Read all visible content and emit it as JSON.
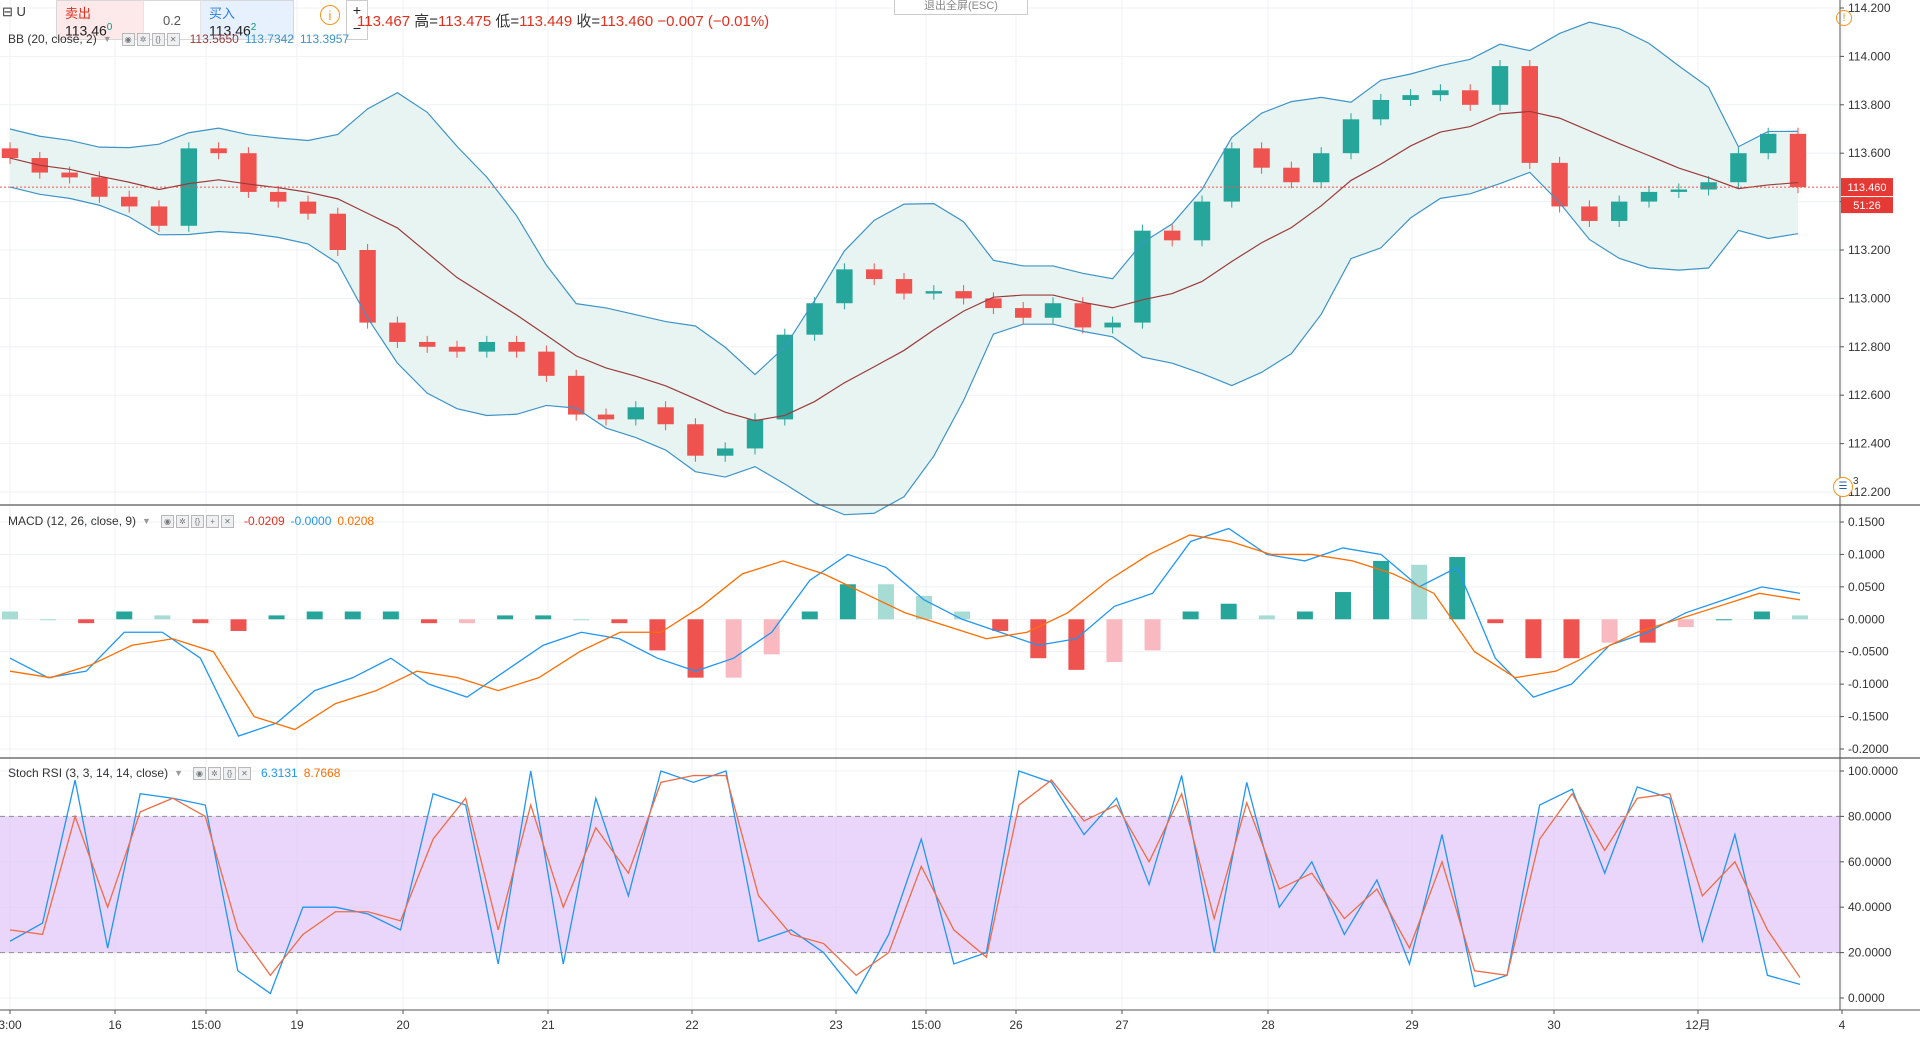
{
  "window": {
    "exit_fullscreen": "退出全屏(ESC)",
    "symbol_abbrev": "U"
  },
  "trade": {
    "sell_label": "卖出",
    "sell_price": "113.46",
    "sell_price_sup": "0",
    "spread": "0.2",
    "buy_label": "买入",
    "buy_price": "113.46",
    "buy_price_sup": "2",
    "zoom_in": "+",
    "zoom_out": "−",
    "info": "i"
  },
  "ohlc": {
    "open_value": "113.467",
    "high_label": "高=",
    "high_value": "113.475",
    "low_label": "低=",
    "low_value": "113.449",
    "close_label": "收=",
    "close_value": "113.460",
    "change": "−0.007 (−0.01%)"
  },
  "indicators": {
    "bb": {
      "label": "BB (20, close, 2)",
      "v1": "113.5650",
      "v2": "113.7342",
      "v3": "113.3957"
    },
    "macd": {
      "label": "MACD (12, 26, close, 9)",
      "hist": "-0.0209",
      "macd": "-0.0000",
      "signal": "0.0208"
    },
    "stoch": {
      "label": "Stoch RSI (3, 3, 14, 14, close)",
      "k": "6.3131",
      "d": "8.7668"
    }
  },
  "price_axis": {
    "ticks": [
      "114.200",
      "114.000",
      "113.800",
      "113.600",
      "113.400",
      "113.200",
      "113.000",
      "112.800",
      "112.600",
      "112.400",
      "112.200"
    ],
    "current_price": "113.460",
    "countdown": "51:26",
    "events_count": "3"
  },
  "macd_axis": {
    "ticks": [
      "0.1500",
      "0.1000",
      "0.0500",
      "0.0000",
      "-0.0500",
      "-0.1000",
      "-0.1500",
      "-0.2000"
    ]
  },
  "stoch_axis": {
    "ticks": [
      "100.0000",
      "80.0000",
      "60.0000",
      "40.0000",
      "20.0000",
      "0.0000"
    ]
  },
  "time_axis": {
    "ticks": [
      "3:00",
      "16",
      "15:00",
      "19",
      "20",
      "21",
      "22",
      "23",
      "15:00",
      "26",
      "27",
      "28",
      "29",
      "30",
      "12月",
      "4"
    ]
  },
  "colors": {
    "up": "#26a69a",
    "down": "#ef5350",
    "bb_band": "#3d94c8",
    "bb_mid": "#9b3b3b",
    "macd": "#2196f3",
    "signal": "#ff6d00",
    "stoch_band": "#e1c8f8"
  },
  "chart_data": [
    {
      "type": "candlestick",
      "title": "",
      "x": [
        0,
        1,
        2,
        3,
        4,
        5,
        6,
        7,
        8,
        9,
        10,
        11,
        12,
        13,
        14,
        15,
        16,
        17,
        18,
        19,
        20,
        21,
        22,
        23,
        24,
        25,
        26,
        27,
        28,
        29,
        30,
        31,
        32,
        33,
        34,
        35,
        36,
        37,
        38,
        39,
        40,
        41,
        42,
        43,
        44,
        45,
        46,
        47,
        48,
        49,
        50,
        51,
        52,
        53,
        54,
        55,
        56,
        57,
        58,
        59,
        60
      ],
      "close": [
        113.58,
        113.52,
        113.5,
        113.42,
        113.38,
        113.3,
        113.62,
        113.6,
        113.44,
        113.4,
        113.35,
        113.2,
        112.9,
        112.82,
        112.8,
        112.78,
        112.82,
        112.78,
        112.68,
        112.52,
        112.5,
        112.55,
        112.48,
        112.35,
        112.38,
        112.5,
        112.85,
        112.98,
        113.12,
        113.08,
        113.02,
        113.03,
        113.0,
        112.96,
        112.92,
        112.98,
        112.88,
        112.9,
        113.28,
        113.24,
        113.4,
        113.62,
        113.54,
        113.48,
        113.6,
        113.74,
        113.82,
        113.84,
        113.86,
        113.8,
        113.96,
        113.56,
        113.38,
        113.32,
        113.4,
        113.44,
        113.45,
        113.48,
        113.6,
        113.68,
        113.46
      ],
      "ylim": [
        112.2,
        114.2
      ],
      "price_line": 113.46
    },
    {
      "type": "line",
      "title": "MACD (12, 26, close, 9)",
      "series": [
        {
          "name": "MACD",
          "values": [
            -0.06,
            -0.09,
            -0.08,
            -0.02,
            -0.02,
            -0.06,
            -0.18,
            -0.16,
            -0.11,
            -0.09,
            -0.06,
            -0.1,
            -0.12,
            -0.08,
            -0.04,
            -0.02,
            -0.03,
            -0.06,
            -0.08,
            -0.06,
            -0.02,
            0.06,
            0.1,
            0.08,
            0.03,
            0.0,
            -0.02,
            -0.04,
            -0.03,
            0.02,
            0.04,
            0.12,
            0.14,
            0.1,
            0.09,
            0.11,
            0.1,
            0.05,
            0.08,
            -0.06,
            -0.12,
            -0.1,
            -0.04,
            -0.02,
            0.01,
            0.03,
            0.05,
            0.04
          ]
        },
        {
          "name": "Signal",
          "values": [
            -0.08,
            -0.09,
            -0.07,
            -0.04,
            -0.03,
            -0.05,
            -0.15,
            -0.17,
            -0.13,
            -0.11,
            -0.08,
            -0.09,
            -0.11,
            -0.09,
            -0.05,
            -0.02,
            -0.02,
            0.02,
            0.07,
            0.09,
            0.07,
            0.04,
            0.01,
            -0.01,
            -0.03,
            -0.02,
            0.01,
            0.06,
            0.1,
            0.13,
            0.12,
            0.1,
            0.1,
            0.09,
            0.07,
            0.04,
            -0.05,
            -0.09,
            -0.08,
            -0.05,
            -0.02,
            0.0,
            0.02,
            0.04,
            0.03
          ]
        }
      ],
      "ylim": [
        -0.2,
        0.15
      ]
    },
    {
      "type": "line",
      "title": "Stoch RSI (3, 3, 14, 14, close)",
      "series": [
        {
          "name": "K",
          "values": [
            25,
            33,
            96,
            22,
            90,
            88,
            85,
            12,
            2,
            40,
            40,
            37,
            30,
            90,
            85,
            15,
            100,
            15,
            88,
            45,
            100,
            95,
            100,
            25,
            30,
            20,
            2,
            28,
            70,
            15,
            20,
            100,
            95,
            72,
            88,
            50,
            98,
            20,
            95,
            40,
            60,
            28,
            52,
            15,
            72,
            5,
            10,
            85,
            92,
            55,
            93,
            88,
            25,
            72,
            10,
            6
          ]
        },
        {
          "name": "D",
          "values": [
            30,
            28,
            80,
            40,
            82,
            88,
            80,
            30,
            10,
            28,
            38,
            38,
            34,
            70,
            88,
            30,
            85,
            40,
            75,
            55,
            95,
            98,
            98,
            45,
            28,
            24,
            10,
            20,
            58,
            30,
            18,
            85,
            96,
            78,
            85,
            60,
            90,
            35,
            86,
            48,
            55,
            35,
            48,
            22,
            60,
            12,
            10,
            70,
            90,
            65,
            88,
            90,
            45,
            60,
            30,
            9
          ]
        }
      ],
      "ylim": [
        0,
        100
      ],
      "bands": [
        20,
        80
      ]
    }
  ]
}
